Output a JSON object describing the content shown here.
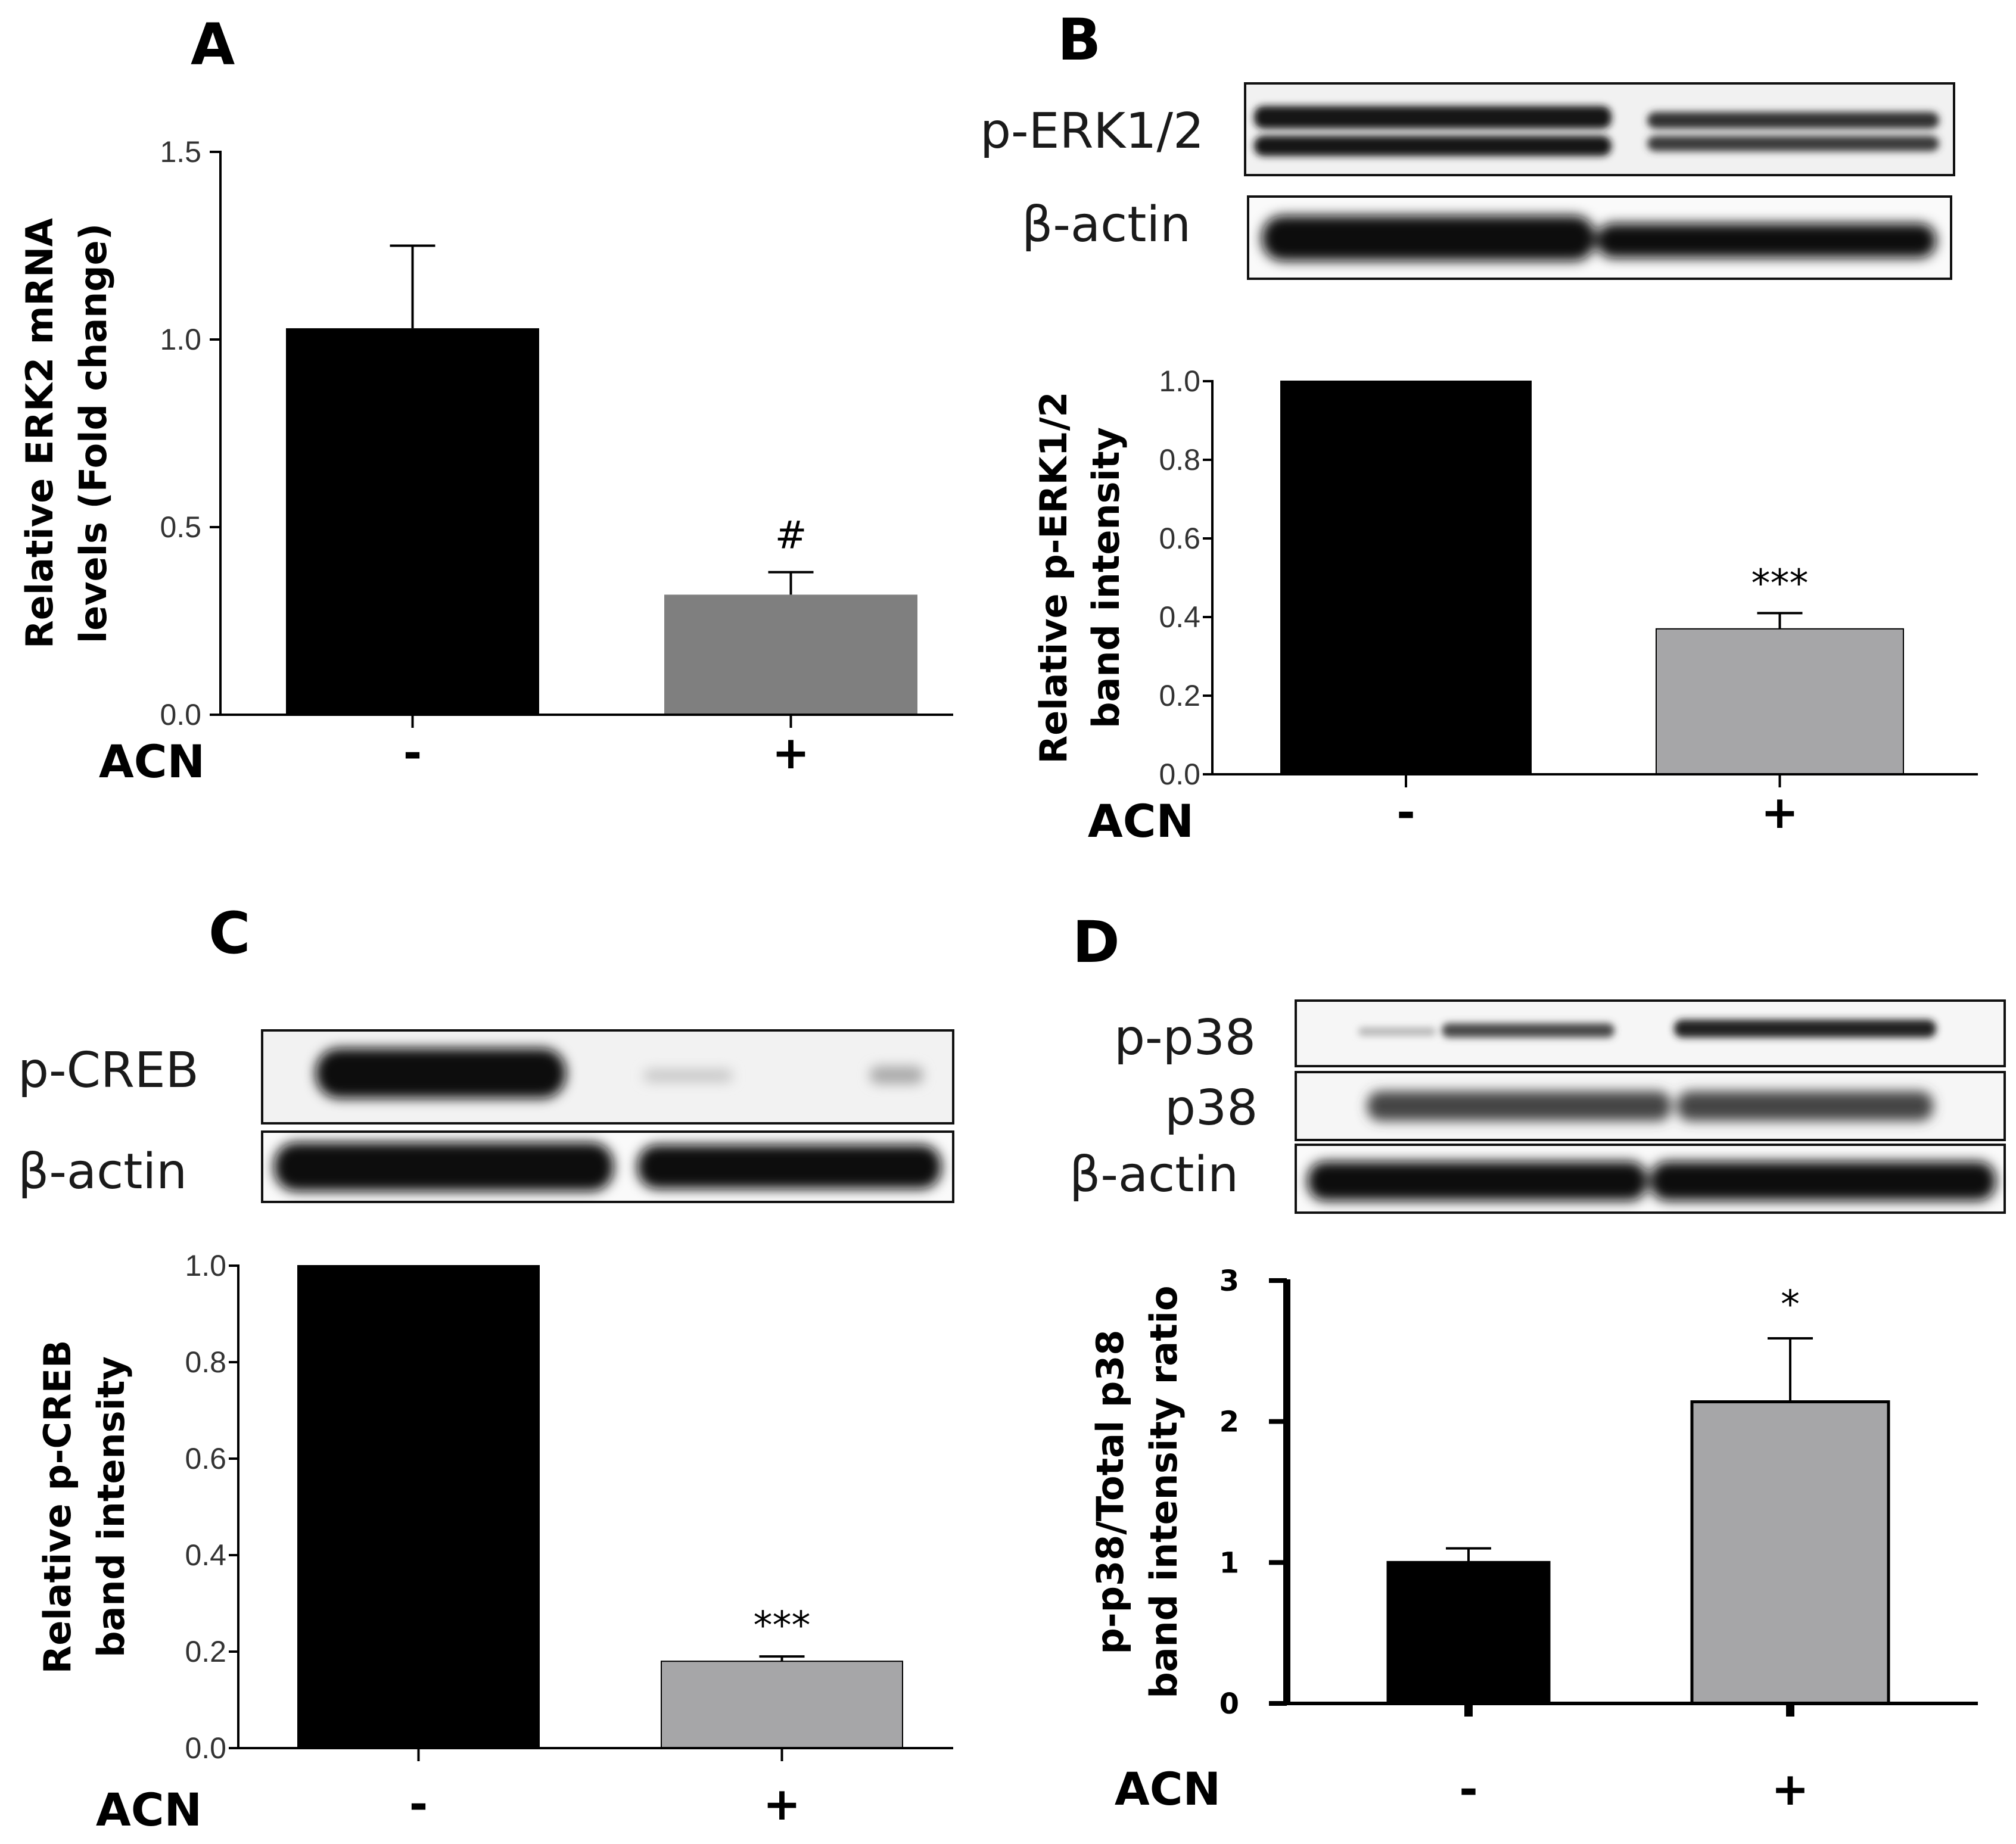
{
  "panels": {
    "A": {
      "letter": "A"
    },
    "B": {
      "letter": "B",
      "blot_labels": [
        "p-ERK1/2",
        "β-actin"
      ]
    },
    "C": {
      "letter": "C",
      "blot_labels": [
        "p-CREB",
        "β-actin"
      ]
    },
    "D": {
      "letter": "D",
      "blot_labels": [
        "p-p38",
        "p38",
        "β-actin"
      ]
    }
  },
  "chart_data": [
    {
      "panel": "A",
      "type": "bar",
      "categories": [
        "-",
        "+"
      ],
      "x_group_label": "ACN",
      "values": [
        1.03,
        0.32
      ],
      "errors": [
        0.22,
        0.06
      ],
      "bar_colors": [
        "#000000",
        "#7f7f7f"
      ],
      "annotations": [
        "",
        "#"
      ],
      "ylabel": "Relative ERK2 mRNA levels (Fold change)",
      "ylim": [
        0,
        1.5
      ],
      "yticks": [
        "0.0",
        "0.5",
        "1.0",
        "1.5"
      ]
    },
    {
      "panel": "B",
      "type": "bar",
      "categories": [
        "-",
        "+"
      ],
      "x_group_label": "ACN",
      "values": [
        1.0,
        0.37
      ],
      "errors": [
        0,
        0.04
      ],
      "bar_colors": [
        "#000000",
        "#a6a6a8"
      ],
      "annotations": [
        "",
        "***"
      ],
      "ylabel": "Relative p-ERK1/2 band intensity",
      "ylim": [
        0,
        1.0
      ],
      "yticks": [
        "0.0",
        "0.2",
        "0.4",
        "0.6",
        "0.8",
        "1.0"
      ]
    },
    {
      "panel": "C",
      "type": "bar",
      "categories": [
        "-",
        "+"
      ],
      "x_group_label": "ACN",
      "values": [
        1.0,
        0.18
      ],
      "errors": [
        0,
        0.01
      ],
      "bar_colors": [
        "#000000",
        "#a6a6a8"
      ],
      "annotations": [
        "",
        "***"
      ],
      "ylabel": "Relative p-CREB band intensity",
      "ylim": [
        0,
        1.0
      ],
      "yticks": [
        "0.0",
        "0.2",
        "0.4",
        "0.6",
        "0.8",
        "1.0"
      ]
    },
    {
      "panel": "D",
      "type": "bar",
      "categories": [
        "-",
        "+"
      ],
      "x_group_label": "ACN",
      "values": [
        1.0,
        2.14
      ],
      "errors": [
        0.1,
        0.45
      ],
      "bar_colors": [
        "#000000",
        "#a6a6a8"
      ],
      "annotations": [
        "",
        "*"
      ],
      "ylabel": "p-p38/Total p38 band intensity ratio",
      "ylim": [
        0,
        3
      ],
      "yticks": [
        "0",
        "1",
        "2",
        "3"
      ]
    }
  ]
}
